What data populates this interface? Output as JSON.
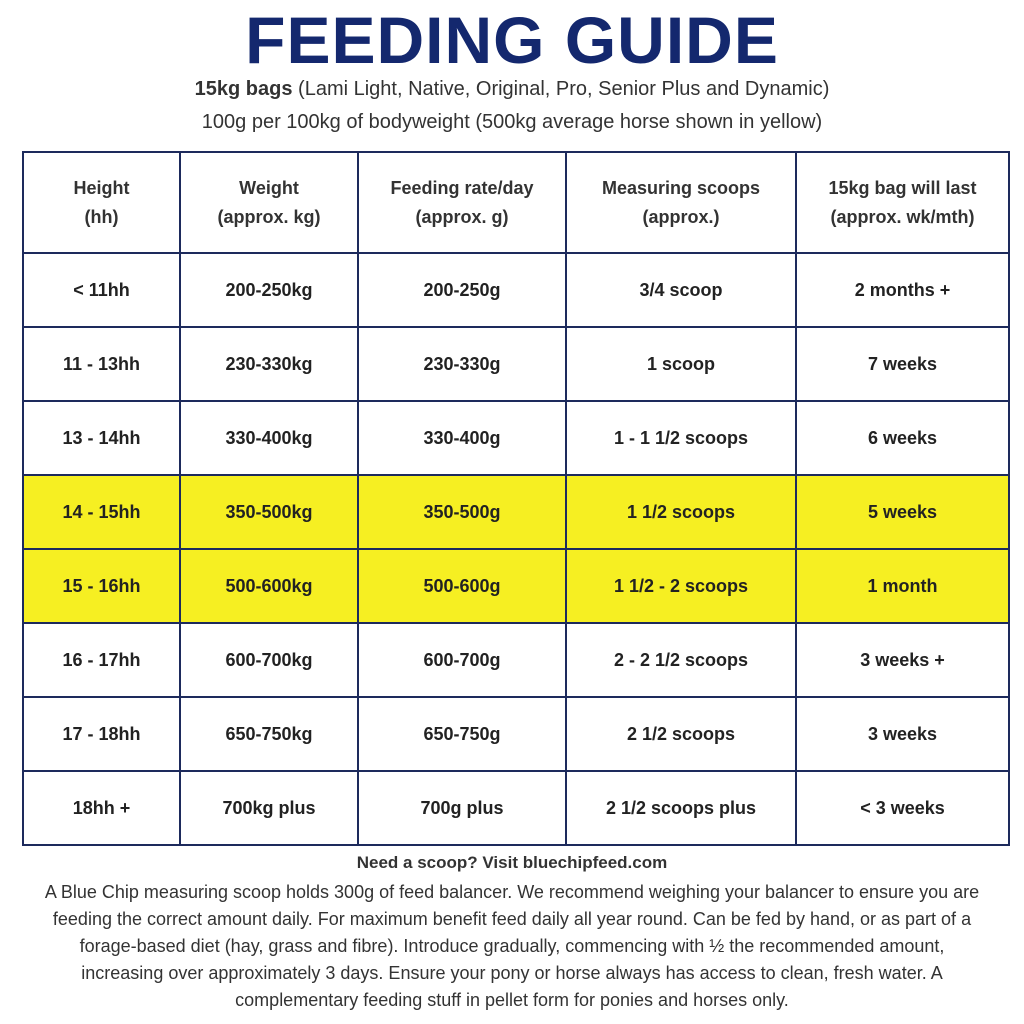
{
  "header": {
    "title": "FEEDING GUIDE",
    "subtitle_bold": "15kg bags",
    "subtitle_rest": "(Lami Light, Native, Original, Pro, Senior Plus and Dynamic)",
    "subtitle_line2": "100g per 100kg of bodyweight (500kg average horse shown in yellow)"
  },
  "table": {
    "columns": [
      [
        "Height",
        "(hh)"
      ],
      [
        "Weight",
        "(approx. kg)"
      ],
      [
        "Feeding rate/day",
        "(approx. g)"
      ],
      [
        "Measuring scoops",
        "(approx.)"
      ],
      [
        "15kg bag will last",
        "(approx. wk/mth)"
      ]
    ],
    "rows": [
      [
        "< 11hh",
        "200-250kg",
        "200-250g",
        "3/4 scoop",
        "2 months +"
      ],
      [
        "11 - 13hh",
        "230-330kg",
        "230-330g",
        "1 scoop",
        "7 weeks"
      ],
      [
        "13 - 14hh",
        "330-400kg",
        "330-400g",
        "1 - 1 1/2 scoops",
        "6 weeks"
      ],
      [
        "14 - 15hh",
        "350-500kg",
        "350-500g",
        "1 1/2 scoops",
        "5 weeks"
      ],
      [
        "15 - 16hh",
        "500-600kg",
        "500-600g",
        "1 1/2 - 2 scoops",
        "1 month"
      ],
      [
        "16 - 17hh",
        "600-700kg",
        "600-700g",
        "2 - 2 1/2 scoops",
        "3 weeks +"
      ],
      [
        "17 - 18hh",
        "650-750kg",
        "650-750g",
        "2 1/2 scoops",
        "3 weeks"
      ],
      [
        "18hh +",
        "700kg plus",
        "700g plus",
        "2 1/2 scoops plus",
        "< 3 weeks"
      ]
    ]
  },
  "footer": {
    "heading": "Need a scoop? Visit bluechipfeed.com",
    "text": "A Blue Chip measuring scoop holds 300g of feed balancer. We recommend weighing your balancer to ensure you are feeding the correct amount daily. For maximum benefit feed daily all year round. Can be fed by hand, or as part of a forage-based diet (hay, grass and fibre). Introduce gradually, commencing with ½ the recommended amount, increasing over approximately 3 days. Ensure your pony or horse always has access to clean, fresh water. A complementary feeding stuff in pellet form for ponies and horses only."
  }
}
